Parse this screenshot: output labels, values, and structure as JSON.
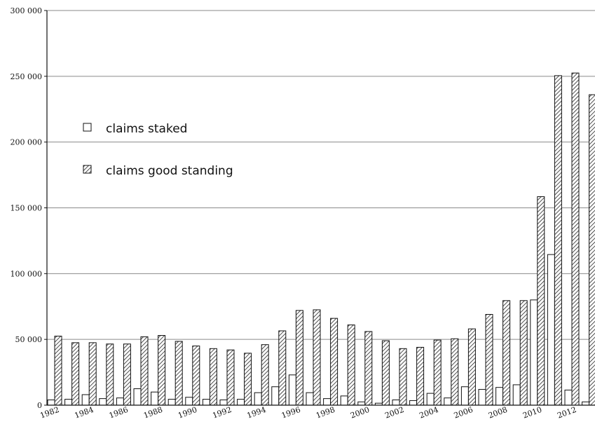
{
  "chart_data": {
    "type": "bar",
    "title": "",
    "xlabel": "",
    "ylabel": "",
    "ylim": [
      0,
      300000
    ],
    "yticks": [
      0,
      50000,
      100000,
      150000,
      200000,
      250000,
      300000
    ],
    "ytick_labels": [
      "0",
      "50 000",
      "100 000",
      "150 000",
      "200 000",
      "250 000",
      "300 000"
    ],
    "grid": "horizontal",
    "legend_position": "upper-left",
    "categories": [
      "1982",
      "1983",
      "1984",
      "1985",
      "1986",
      "1987",
      "1988",
      "1989",
      "1990",
      "1991",
      "1992",
      "1993",
      "1994",
      "1995",
      "1996",
      "1997",
      "1998",
      "1999",
      "2000",
      "2001",
      "2002",
      "2003",
      "2004",
      "2005",
      "2006",
      "2007",
      "2008",
      "2009",
      "2010",
      "2011",
      "2012",
      "2013"
    ],
    "xtick_labels": [
      "1982",
      "1984",
      "1986",
      "1988",
      "1990",
      "1992",
      "1994",
      "1996",
      "1998",
      "2000",
      "2002",
      "2004",
      "2006",
      "2008",
      "2010",
      "2012"
    ],
    "series": [
      {
        "name": "claims staked",
        "pattern": "white",
        "values": [
          4000,
          4500,
          8000,
          5000,
          5500,
          12500,
          10000,
          4500,
          6000,
          4500,
          4000,
          4500,
          9500,
          14000,
          23000,
          9500,
          5000,
          7000,
          2500,
          1500,
          4000,
          3500,
          9000,
          5500,
          14000,
          12000,
          13500,
          15500,
          80000,
          114500,
          11500,
          2500
        ]
      },
      {
        "name": "claims good standing",
        "pattern": "hatched",
        "values": [
          52500,
          47500,
          47500,
          46500,
          46500,
          52000,
          53000,
          48500,
          45000,
          43000,
          42000,
          39500,
          46000,
          56500,
          72000,
          72500,
          66000,
          61000,
          56000,
          49000,
          43000,
          44000,
          49500,
          50500,
          58000,
          69000,
          79500,
          79500,
          158500,
          250500,
          252500,
          236000
        ]
      }
    ]
  }
}
